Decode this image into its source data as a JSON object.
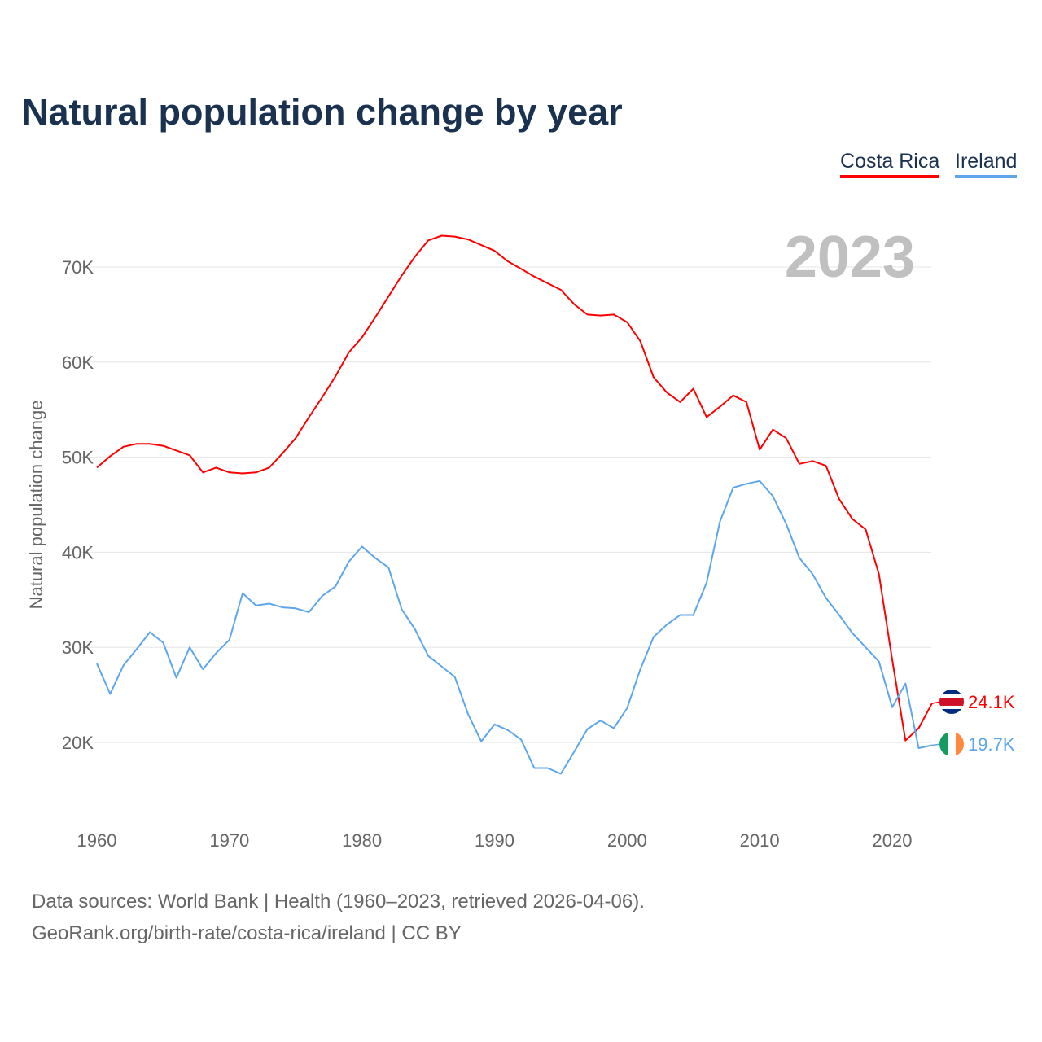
{
  "title": "Natural population change by year",
  "footer": {
    "line1": "Data sources: World Bank | Health (1960–2023, retrieved 2026-04-06).",
    "line2": "GeoRank.org/birth-rate/costa-rica/ireland | CC BY"
  },
  "chart_data": {
    "type": "line",
    "title": "Natural population change by year",
    "xlabel": "",
    "ylabel": "Natural population change",
    "year_watermark": "2023",
    "xlim": [
      1960,
      2023
    ],
    "ylim": [
      11000,
      76000
    ],
    "x_ticks": [
      "1960",
      "1970",
      "1980",
      "1990",
      "2000",
      "2010",
      "2020"
    ],
    "y_ticks": [
      {
        "value": 20000,
        "label": "20K"
      },
      {
        "value": 30000,
        "label": "30K"
      },
      {
        "value": 40000,
        "label": "40K"
      },
      {
        "value": 50000,
        "label": "50K"
      },
      {
        "value": 60000,
        "label": "60K"
      },
      {
        "value": 70000,
        "label": "70K"
      }
    ],
    "grid": true,
    "legend_position": "top-right",
    "x": [
      1960,
      1961,
      1962,
      1963,
      1964,
      1965,
      1966,
      1967,
      1968,
      1969,
      1970,
      1971,
      1972,
      1973,
      1974,
      1975,
      1976,
      1977,
      1978,
      1979,
      1980,
      1981,
      1982,
      1983,
      1984,
      1985,
      1986,
      1987,
      1988,
      1989,
      1990,
      1991,
      1992,
      1993,
      1994,
      1995,
      1996,
      1997,
      1998,
      1999,
      2000,
      2001,
      2002,
      2003,
      2004,
      2005,
      2006,
      2007,
      2008,
      2009,
      2010,
      2011,
      2012,
      2013,
      2014,
      2015,
      2016,
      2017,
      2018,
      2019,
      2020,
      2021,
      2022,
      2023
    ],
    "series": [
      {
        "name": "Costa Rica",
        "color": "#ff0000",
        "end_label": "24.1K",
        "values": [
          48900,
          50100,
          51100,
          51400,
          51400,
          51200,
          50700,
          50200,
          48400,
          48900,
          48400,
          48300,
          48400,
          48900,
          50400,
          52000,
          54200,
          56300,
          58500,
          61000,
          62600,
          64700,
          66900,
          69100,
          71100,
          72800,
          73300,
          73200,
          72900,
          72300,
          71700,
          70600,
          69800,
          69000,
          68300,
          67600,
          66100,
          65000,
          64900,
          65000,
          64200,
          62200,
          58400,
          56800,
          55800,
          57200,
          54200,
          55300,
          56500,
          55800,
          50800,
          52900,
          52000,
          49300,
          49600,
          49100,
          45600,
          43500,
          42400,
          37700,
          28700,
          20200,
          21500,
          24100
        ]
      },
      {
        "name": "Ireland",
        "color": "#5ea6ec",
        "end_label": "19.7K",
        "values": [
          28300,
          25100,
          28100,
          29800,
          31600,
          30500,
          26800,
          30000,
          27700,
          29400,
          30800,
          35700,
          34400,
          34600,
          34200,
          34100,
          33700,
          35400,
          36400,
          39000,
          40600,
          39400,
          38400,
          34000,
          31900,
          29100,
          28000,
          26900,
          23000,
          20100,
          21900,
          21300,
          20300,
          17300,
          17300,
          16700,
          19000,
          21400,
          22300,
          21500,
          23600,
          27700,
          31100,
          32400,
          33400,
          33400,
          36800,
          43200,
          46800,
          47200,
          47500,
          45900,
          43000,
          39400,
          37700,
          35200,
          33400,
          31500,
          30000,
          28500,
          23700,
          26200,
          19400,
          19700
        ]
      }
    ]
  }
}
